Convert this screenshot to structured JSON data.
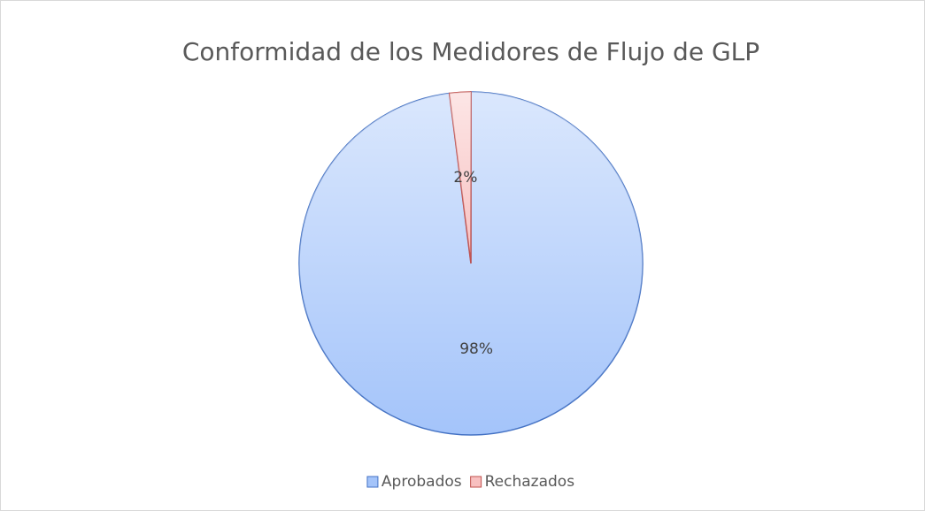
{
  "chart_data": {
    "type": "pie",
    "title": "Conformidad de los Medidores de Flujo de GLP",
    "categories": [
      "Aprobados",
      "Rechazados"
    ],
    "values": [
      98,
      2
    ],
    "value_labels": [
      "98%",
      "2%"
    ],
    "colors": [
      "#a4c4fa",
      "#f8c0c0"
    ],
    "stroke_colors": [
      "#4472c4",
      "#c0504d"
    ],
    "legend": "bottom"
  }
}
